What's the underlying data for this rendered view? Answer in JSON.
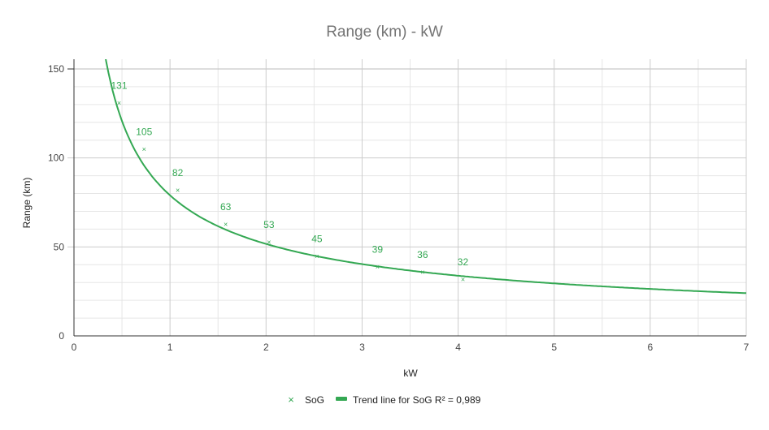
{
  "chart_data": {
    "type": "scatter",
    "title": "Range (km) - kW",
    "xlabel": "kW",
    "ylabel": "Range (km)",
    "xlim": [
      0,
      7
    ],
    "ylim": [
      0,
      150
    ],
    "x_ticks": [
      "0",
      "1",
      "2",
      "3",
      "4",
      "5",
      "6",
      "7"
    ],
    "y_ticks": [
      "0",
      "50",
      "100",
      "150"
    ],
    "grid": true,
    "legend_position": "bottom",
    "series": [
      {
        "name": "SoG",
        "color": "#34a853",
        "marker": "x",
        "points": [
          {
            "x": 0.47,
            "y": 131,
            "label": "131"
          },
          {
            "x": 0.73,
            "y": 105,
            "label": "105"
          },
          {
            "x": 1.08,
            "y": 82,
            "label": "82"
          },
          {
            "x": 1.58,
            "y": 63,
            "label": "63"
          },
          {
            "x": 2.03,
            "y": 53,
            "label": "53"
          },
          {
            "x": 2.53,
            "y": 45,
            "label": "45"
          },
          {
            "x": 3.16,
            "y": 39,
            "label": "39"
          },
          {
            "x": 3.63,
            "y": 36,
            "label": "36"
          },
          {
            "x": 4.05,
            "y": 32,
            "label": "32"
          }
        ]
      }
    ],
    "trendline": {
      "name": "Trend line for SoG R² = 0,989",
      "type": "power",
      "a": 79,
      "b": -0.612,
      "x_range": [
        0.2,
        7
      ],
      "color": "#34a853"
    }
  }
}
